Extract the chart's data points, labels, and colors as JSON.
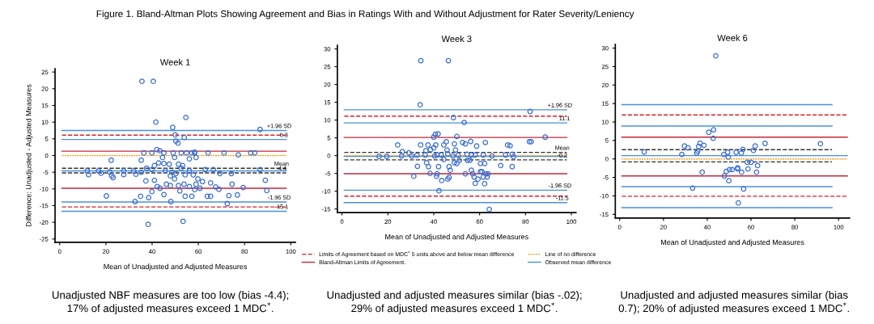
{
  "chart_data": [
    {
      "type": "scatter",
      "title": "Week 1",
      "xlabel": "Mean of Unadjusted and Adjusted Measures",
      "ylabel": "Difference: Unadjusted - Adjusted Measures",
      "xlim": [
        -2,
        102
      ],
      "xticks": [
        0,
        20,
        40,
        60,
        80,
        100
      ],
      "ylim": [
        -26,
        26
      ],
      "yticks": [
        -25,
        -20,
        -15,
        -10,
        -5,
        0,
        5,
        10,
        15,
        20,
        25
      ],
      "series": [
        {
          "type": "scatter",
          "marker": "circle",
          "color": "#3b6fd4",
          "x": [
            35.6,
            40.5,
            54.6,
            41.6,
            48.9,
            86.7,
            50,
            53.9,
            50.3,
            51.2,
            42,
            43.4,
            36.4,
            39.9,
            45.1,
            49.1,
            52.6,
            54.9,
            57.2,
            58.4,
            71.1,
            82.7,
            84.4,
            64.2,
            77.3,
            22.3,
            35.3,
            11.9,
            12.5,
            16.8,
            17.9,
            21.6,
            22.5,
            23.1,
            20.2,
            27.7,
            27.7,
            32,
            33,
            32.6,
            35,
            38.5,
            38.3,
            37.3,
            41,
            39.9,
            42.2,
            43.4,
            45.1,
            46.2,
            47.9,
            48.1,
            49.7,
            51.4,
            52,
            53.8,
            53.4,
            54.3,
            56.1,
            57.2,
            58.4,
            59,
            59.8,
            60.7,
            61.8,
            63.9,
            65.3,
            65.3,
            67.5,
            68.9,
            69.3,
            72.5,
            73.2,
            74.6,
            74.3,
            76.9,
            79.4,
            89,
            89.6,
            86.7,
            66.5,
            63,
            59,
            58.4,
            56.1,
            53.2,
            51.4,
            49.7,
            47.4,
            45.1,
            44.5,
            42.8,
            41,
            39.9,
            37.6,
            35.3,
            45.7,
            48.6,
            50.3,
            52.6,
            54.3,
            56.1,
            57.8,
            47.9
          ],
          "values": [
            22.2,
            22.2,
            11.4,
            10,
            8.4,
            7.8,
            6.2,
            5.4,
            4.3,
            3.7,
            1.8,
            1.4,
            0.8,
            0.8,
            0.8,
            0.8,
            0.8,
            0.8,
            0.8,
            0.8,
            0.8,
            0.8,
            0.8,
            0.8,
            0.2,
            -1.4,
            -1.4,
            -4.6,
            -5.7,
            -4.6,
            -5.3,
            -4.9,
            -6.1,
            -6.6,
            -12.1,
            -4.6,
            -5.7,
            -4.6,
            -5.6,
            -13.8,
            -12.2,
            -12.6,
            -20.6,
            -7.6,
            -7.4,
            -10.8,
            -9.3,
            -9.8,
            -11.7,
            -8.6,
            -9,
            -13.8,
            -7,
            -9,
            -10.6,
            -8.6,
            -19.7,
            -12.2,
            -9.3,
            -12.2,
            -10.2,
            -8.6,
            -7,
            -9.8,
            -7.8,
            -12.2,
            -12.2,
            -8.2,
            -9.4,
            -10.1,
            -5.4,
            -14.4,
            -12,
            -8.6,
            -5.4,
            -11.8,
            -9.6,
            -7.4,
            -10.5,
            -4.2,
            -4.2,
            -4.2,
            -0.6,
            1,
            -1,
            -3,
            -2.6,
            -0.6,
            -2.6,
            -2.4,
            -0.6,
            -2.2,
            -3,
            -4.2,
            -3.8,
            -5,
            -4.6,
            -5,
            -5.4,
            -3.8,
            -5.8,
            -4.6,
            -5.8,
            -6.1
          ]
        },
        {
          "type": "line",
          "color": "#4a90d9",
          "line_style": "solid",
          "x": [
            1,
            98
          ],
          "values": [
            7.5,
            7.5
          ]
        },
        {
          "type": "line",
          "color": "#d8202a",
          "line_style": "dashed",
          "x": [
            1,
            98
          ],
          "values": [
            6.1,
            6.1
          ]
        },
        {
          "type": "line",
          "color": "#4a90d9",
          "line_style": "solid",
          "x": [
            1,
            98
          ],
          "values": [
            4.8,
            4.8
          ]
        },
        {
          "type": "line",
          "color": "#c0283a",
          "line_style": "solid",
          "x": [
            1,
            98
          ],
          "values": [
            1.3,
            1.3
          ]
        },
        {
          "type": "line",
          "color": "#e8a020",
          "line_style": "dotted",
          "x": [
            1,
            98
          ],
          "values": [
            0,
            0
          ]
        },
        {
          "type": "line",
          "color": "#333333",
          "line_style": "dashed",
          "x": [
            1,
            98
          ],
          "values": [
            -3.8,
            -3.8
          ]
        },
        {
          "type": "line",
          "color": "#4a90d9",
          "line_style": "solid",
          "x": [
            1,
            98
          ],
          "values": [
            -4.6,
            -4.6
          ]
        },
        {
          "type": "line",
          "color": "#333333",
          "line_style": "dashed",
          "x": [
            1,
            98
          ],
          "values": [
            -5.2,
            -5.2
          ]
        },
        {
          "type": "line",
          "color": "#c0283a",
          "line_style": "solid",
          "x": [
            1,
            98
          ],
          "values": [
            -9.8,
            -9.8
          ]
        },
        {
          "type": "line",
          "color": "#4a90d9",
          "line_style": "solid",
          "x": [
            1,
            98
          ],
          "values": [
            -13.9,
            -13.9
          ]
        },
        {
          "type": "line",
          "color": "#d8202a",
          "line_style": "dashed",
          "x": [
            1,
            98
          ],
          "values": [
            -15.4,
            -15.4
          ]
        },
        {
          "type": "line",
          "color": "#4a90d9",
          "line_style": "solid",
          "x": [
            1,
            98
          ],
          "values": [
            -16.7,
            -16.7
          ]
        }
      ],
      "annotations": [
        "Figure 1. Bland-Altman Plots Showing Agreement and Bias in Ratings With and Without Adjustment for Rater Severity/Leniency",
        {
          "text": "+1.96 SD",
          "x": 95,
          "y": 7.5
        },
        {
          "text": "6.3",
          "x": 97,
          "y": 4.8
        },
        {
          "text": "Mean",
          "x": 96,
          "y": -3.8
        },
        {
          "text": "-4.4",
          "x": 96,
          "y": -5.2
        },
        {
          "text": "-1.96 SD",
          "x": 95,
          "y": -13.9
        },
        {
          "text": "-15.1",
          "x": 96,
          "y": -16.7
        },
        "Unadjusted NBF measures are too low (bias -4.4);\n17% of adjusted measures exceed 1 MDC$^{*}$."
      ]
    },
    {
      "type": "scatter",
      "title": "Week 3",
      "xlabel": "Mean of Unadjusted and Adjusted Measures",
      "xlim": [
        -2,
        102
      ],
      "xticks": [
        0,
        20,
        40,
        60,
        80,
        100
      ],
      "ylim": [
        -16,
        31
      ],
      "yticks": [
        -15,
        -10,
        -5,
        0,
        5,
        10,
        15,
        20,
        25,
        30
      ],
      "legend": "bottom",
      "series": [
        {
          "type": "scatter",
          "marker": "circle",
          "color": "#3b6fd4",
          "x": [
            34.4,
            46.4,
            34.1,
            82,
            48.6,
            53.3,
            88.6,
            50.1,
            41.9,
            40.7,
            40,
            24.3,
            34.3,
            37.5,
            40.9,
            45.5,
            44.4,
            49,
            52.6,
            53.8,
            56.1,
            58.7,
            62.5,
            72.2,
            73.3,
            81.7,
            82.5,
            38.6,
            40,
            36.6,
            45.8,
            49.5,
            26.3,
            29.2,
            16.2,
            19.5,
            26,
            30.4,
            32.7,
            36.3,
            40.4,
            41.5,
            43.2,
            46.1,
            48.4,
            50.7,
            54.5,
            56.4,
            58.1,
            61.6,
            65.4,
            71.3,
            74.2,
            74.8,
            32.9,
            36.9,
            37.7,
            42.1,
            44.4,
            46.7,
            49,
            50.1,
            51.2,
            54.7,
            55.8,
            60.4,
            62.2,
            69.2,
            74.2,
            31.3,
            38.4,
            41.2,
            41.5,
            43.5,
            46.1,
            46.7,
            47.2,
            53.8,
            56.4,
            57,
            57.6,
            58.1,
            59.3,
            60.4,
            61,
            61.6,
            62.2,
            62.8,
            63.3,
            63.7,
            42.3,
            64.2
          ],
          "values": [
            26.7,
            26.7,
            14.3,
            12.4,
            10.7,
            9.3,
            5.2,
            5.4,
            6.1,
            6,
            5.2,
            3,
            3,
            3,
            3,
            3.9,
            3,
            3.3,
            3.7,
            3.3,
            4,
            2.7,
            3.7,
            3,
            2.8,
            3.9,
            3.9,
            1.7,
            2.2,
            1.4,
            1.6,
            1.6,
            1.1,
            0.8,
            -0.2,
            -0.2,
            -0.1,
            -0.1,
            0.1,
            0.2,
            -0.1,
            0.2,
            0.2,
            0.5,
            -0.1,
            0.1,
            0.4,
            0.2,
            0.2,
            0.2,
            -0.1,
            0.2,
            0.4,
            -0.3,
            -3,
            -2,
            -3.1,
            -3.1,
            -1.1,
            -3.1,
            -2,
            -2.2,
            -1.3,
            -1.3,
            -1.3,
            -2.2,
            -2.2,
            -2.8,
            -3.1,
            -5.8,
            -5,
            -5.8,
            -5.1,
            -7,
            -6.6,
            -6.1,
            -4.1,
            -5.1,
            -4.1,
            -5.1,
            -6,
            -7.8,
            -6.6,
            -4.5,
            -4.5,
            -6,
            -7.9,
            -5.1,
            -6,
            -5.1,
            -9.9,
            -15.1
          ]
        },
        {
          "type": "line",
          "color": "#4a90d9",
          "line_style": "solid",
          "x": [
            1,
            98
          ],
          "values": [
            12.9,
            12.9
          ]
        },
        {
          "type": "line",
          "color": "#d8202a",
          "line_style": "dashed",
          "x": [
            1,
            98
          ],
          "values": [
            11.1,
            11.1
          ],
          "name": "Limits of Agreement based on MDC$^{*}$ 5 units above and below mean difference"
        },
        {
          "type": "line",
          "color": "#4a90d9",
          "line_style": "solid",
          "x": [
            1,
            98
          ],
          "values": [
            9.2,
            9.2
          ]
        },
        {
          "type": "line",
          "color": "#c0283a",
          "line_style": "solid",
          "x": [
            1,
            98
          ],
          "values": [
            5.1,
            5.1
          ],
          "name": "Bland-Altman Limits of Agreement."
        },
        {
          "type": "line",
          "color": "#333333",
          "line_style": "dashed",
          "x": [
            1,
            98
          ],
          "values": [
            0.9,
            0.9
          ]
        },
        {
          "type": "line",
          "color": "#e8a020",
          "line_style": "dotted",
          "x": [
            1,
            98
          ],
          "values": [
            0,
            0
          ],
          "name": "Line of no difference"
        },
        {
          "type": "line",
          "color": "#4a90d9",
          "line_style": "solid",
          "x": [
            1,
            98
          ],
          "values": [
            -0.2,
            -0.2
          ],
          "name": "Observed mean difference"
        },
        {
          "type": "line",
          "color": "#333333",
          "line_style": "dashed",
          "x": [
            1,
            98
          ],
          "values": [
            -1.2,
            -1.2
          ]
        },
        {
          "type": "line",
          "color": "#c0283a",
          "line_style": "solid",
          "x": [
            1,
            98
          ],
          "values": [
            -5.1,
            -5.1
          ]
        },
        {
          "type": "line",
          "color": "#4a90d9",
          "line_style": "solid",
          "x": [
            1,
            98
          ],
          "values": [
            -9.7,
            -9.7
          ]
        },
        {
          "type": "line",
          "color": "#d8202a",
          "line_style": "dashed",
          "x": [
            1,
            98
          ],
          "values": [
            -11.4,
            -11.4
          ]
        },
        {
          "type": "line",
          "color": "#4a90d9",
          "line_style": "solid",
          "x": [
            1,
            98
          ],
          "values": [
            -13.2,
            -13.2
          ]
        }
      ],
      "annotations": [
        {
          "text": "+1.96 SD",
          "x": 95,
          "y": 12.9
        },
        {
          "text": "11.1",
          "x": 97,
          "y": 9.2
        },
        {
          "text": "Mean",
          "x": 96,
          "y": 0.9
        },
        {
          "text": "-0.2",
          "x": 96,
          "y": -1.2
        },
        {
          "text": "-1.96 SD",
          "x": 95,
          "y": -9.7
        },
        {
          "text": "-11.5",
          "x": 96,
          "y": -13.2
        },
        "Unadjusted and adjusted measures similar (bias -.02);\n29% of adjusted measures exceed 1 MDC$^{*}$."
      ]
    },
    {
      "type": "scatter",
      "title": "Week 6",
      "xlabel": "Mean of Unadjusted and Adjusted Measures",
      "xlim": [
        -2,
        105
      ],
      "xticks": [
        0,
        20,
        40,
        60,
        80,
        100
      ],
      "ylim": [
        -16,
        31
      ],
      "yticks": [
        -15,
        -10,
        -5,
        0,
        5,
        10,
        15,
        20,
        25,
        30
      ],
      "series": [
        {
          "type": "scatter",
          "marker": "circle",
          "color": "#3b6fd4",
          "x": [
            43.9,
            11.2,
            28.4,
            29.6,
            31.2,
            35.2,
            35.6,
            36.1,
            36.7,
            38.5,
            40.7,
            42.9,
            42.7,
            37.7,
            33.3,
            47.6,
            49.3,
            49.6,
            47.8,
            48.7,
            49.9,
            50.2,
            51.4,
            53.2,
            53.9,
            53.9,
            55.6,
            55.7,
            56.3,
            56.6,
            54.2,
            58.3,
            58.6,
            60,
            61.1,
            61.9,
            63,
            62.5,
            66.4,
            91.7
          ],
          "values": [
            27.9,
            1.9,
            1.2,
            3.5,
            3,
            1.6,
            2.1,
            3.4,
            4.3,
            3.7,
            7.2,
            7.9,
            5.6,
            -3.6,
            -7.9,
            1.2,
            1.8,
            0.5,
            -4.6,
            -3.4,
            -5.9,
            -2.9,
            -2.9,
            1.8,
            -2.4,
            -2.7,
            1.6,
            -3.6,
            2.6,
            -8.1,
            -11.9,
            -0.9,
            -2.7,
            -0.9,
            2.3,
            3.5,
            -1.8,
            -3.6,
            4.2,
            4.1
          ]
        },
        {
          "type": "line",
          "color": "#4a90d9",
          "line_style": "solid",
          "x": [
            1,
            97
          ],
          "values": [
            14.7,
            14.7
          ]
        },
        {
          "type": "line",
          "color": "#d8202a",
          "line_style": "dashed",
          "x": [
            1,
            104
          ],
          "values": [
            11.9,
            11.9
          ]
        },
        {
          "type": "line",
          "color": "#4a90d9",
          "line_style": "solid",
          "x": [
            1,
            97
          ],
          "values": [
            8.9,
            8.9
          ]
        },
        {
          "type": "line",
          "color": "#c0283a",
          "line_style": "solid",
          "x": [
            1,
            104
          ],
          "values": [
            5.9,
            5.9
          ]
        },
        {
          "type": "line",
          "color": "#333333",
          "line_style": "dashed",
          "x": [
            1,
            97
          ],
          "values": [
            2.5,
            2.5
          ]
        },
        {
          "type": "line",
          "color": "#4a90d9",
          "line_style": "solid",
          "x": [
            1,
            104
          ],
          "values": [
            0.9,
            0.9
          ]
        },
        {
          "type": "line",
          "color": "#e8a020",
          "line_style": "dotted",
          "x": [
            1,
            104
          ],
          "values": [
            0,
            0
          ]
        },
        {
          "type": "line",
          "color": "#333333",
          "line_style": "dashed",
          "x": [
            1,
            97
          ],
          "values": [
            -0.8,
            -0.8
          ]
        },
        {
          "type": "line",
          "color": "#c0283a",
          "line_style": "solid",
          "x": [
            1,
            104
          ],
          "values": [
            -4.6,
            -4.6
          ]
        },
        {
          "type": "line",
          "color": "#4a90d9",
          "line_style": "solid",
          "x": [
            1,
            97
          ],
          "values": [
            -7.5,
            -7.5
          ]
        },
        {
          "type": "line",
          "color": "#d8202a",
          "line_style": "dashed",
          "x": [
            1,
            104
          ],
          "values": [
            -10.1,
            -10.1
          ]
        },
        {
          "type": "line",
          "color": "#4a90d9",
          "line_style": "solid",
          "x": [
            1,
            97
          ],
          "values": [
            -13.2,
            -13.2
          ]
        }
      ],
      "annotations": [
        "Unadjusted and adjusted measures similar (bias\n0.7); 20% of adjusted measures exceed 1 MDC$^{*}$."
      ]
    }
  ]
}
